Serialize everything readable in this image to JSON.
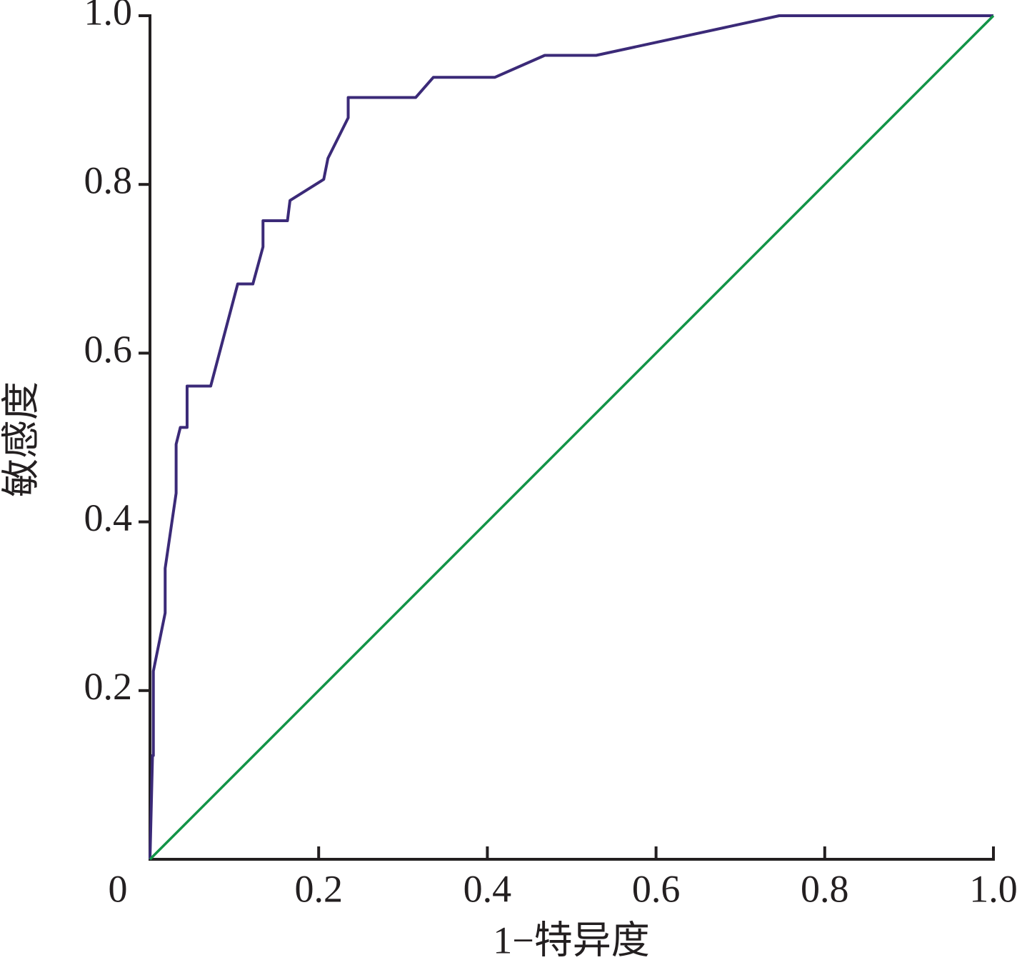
{
  "chart_data": {
    "type": "line",
    "x_label": "1−特异度",
    "y_label": "敏感度",
    "xlim": [
      0,
      1
    ],
    "ylim": [
      0,
      1
    ],
    "xticks": [
      0,
      0.2,
      0.4,
      0.6,
      0.8,
      {
        "value": 1,
        "label": "1.0"
      }
    ],
    "yticks": [
      0.2,
      0.4,
      0.6,
      0.8,
      {
        "value": 1,
        "label": "1.0"
      }
    ],
    "series": [
      {
        "color": "#3b2a78",
        "x": [
          0,
          0.003,
          0.004,
          0.004,
          0.018,
          0.018,
          0.031,
          0.031,
          0.036,
          0.044,
          0.044,
          0.072,
          0.104,
          0.122,
          0.134,
          0.134,
          0.163,
          0.166,
          0.206,
          0.211,
          0.235,
          0.235,
          0.315,
          0.336,
          0.409,
          0.468,
          0.529,
          0.746,
          1
        ],
        "values": [
          0,
          0.123,
          0.123,
          0.223,
          0.292,
          0.345,
          0.434,
          0.492,
          0.512,
          0.512,
          0.561,
          0.561,
          0.682,
          0.682,
          0.726,
          0.757,
          0.757,
          0.781,
          0.806,
          0.831,
          0.879,
          0.903,
          0.903,
          0.927,
          0.927,
          0.953,
          0.953,
          1,
          1
        ]
      },
      {
        "color": "#129447",
        "x": [
          0,
          1
        ],
        "values": [
          0,
          1
        ]
      }
    ]
  }
}
